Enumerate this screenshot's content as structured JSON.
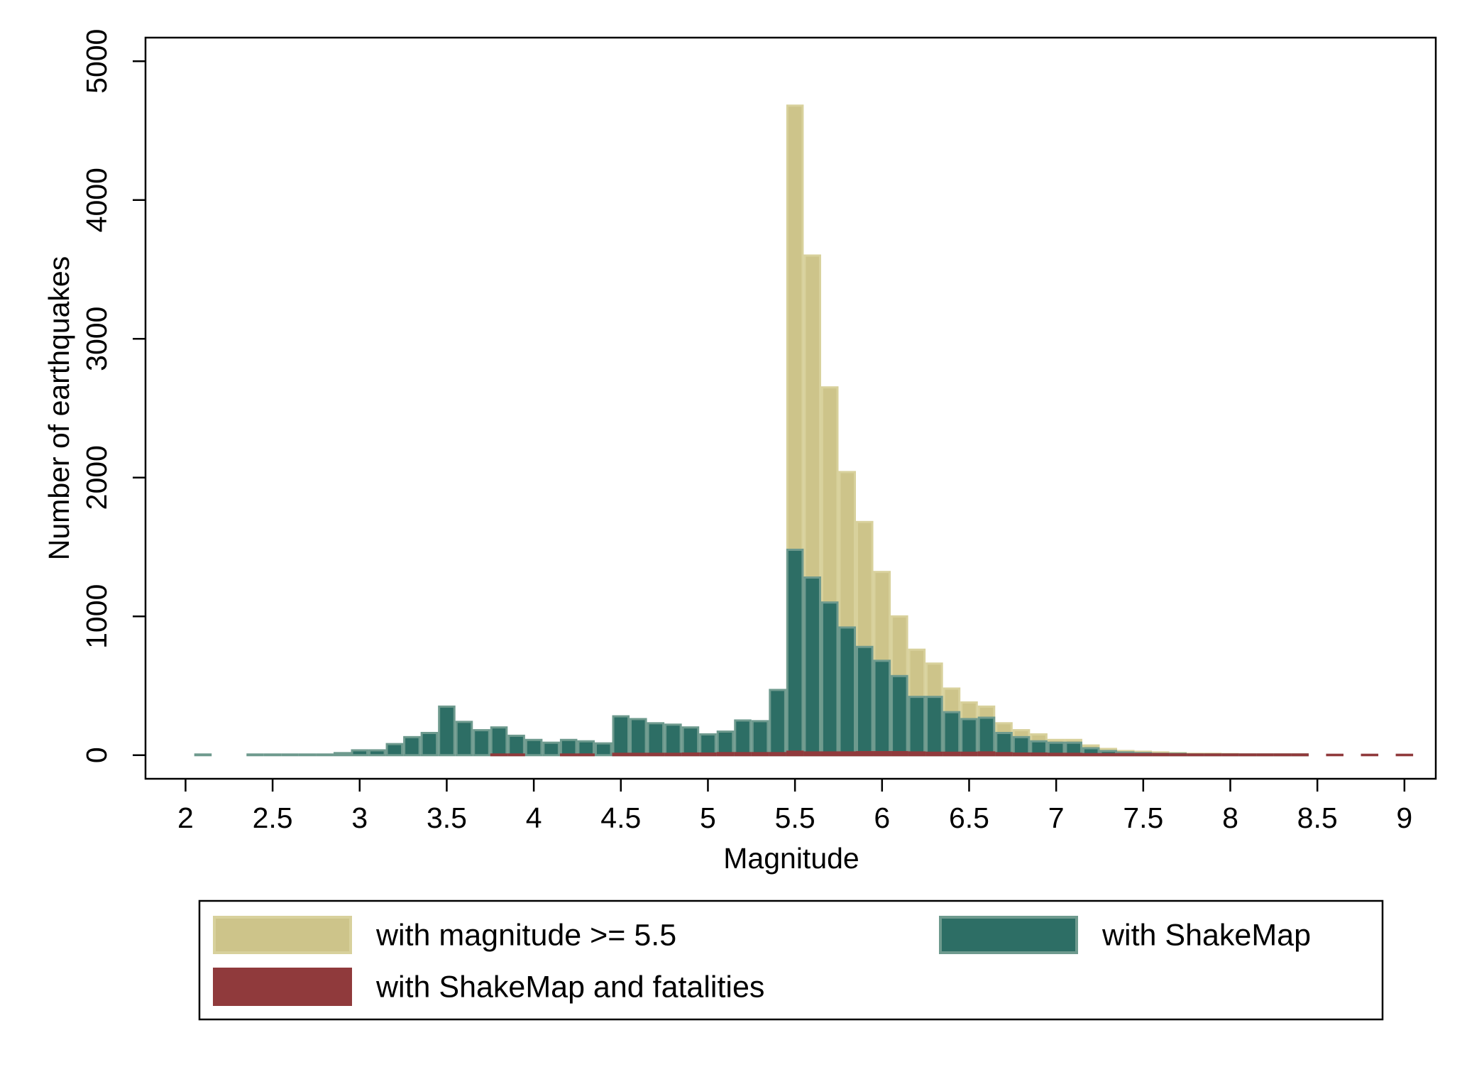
{
  "chart_data": {
    "type": "histogram",
    "xlabel": "Magnitude",
    "ylabel": "Number of earthquakes",
    "bins": [
      2.05,
      2.15,
      2.25,
      2.35,
      2.45,
      2.55,
      2.65,
      2.75,
      2.85,
      2.95,
      3.05,
      3.15,
      3.25,
      3.35,
      3.45,
      3.55,
      3.65,
      3.75,
      3.85,
      3.95,
      4.05,
      4.15,
      4.25,
      4.35,
      4.45,
      4.55,
      4.65,
      4.75,
      4.85,
      4.95,
      5.05,
      5.15,
      5.25,
      5.35,
      5.45,
      5.55,
      5.65,
      5.75,
      5.85,
      5.95,
      6.05,
      6.15,
      6.25,
      6.35,
      6.45,
      6.55,
      6.65,
      6.75,
      6.85,
      6.95,
      7.05,
      7.15,
      7.25,
      7.35,
      7.45,
      7.55,
      7.65,
      7.75,
      7.85,
      7.95,
      8.05,
      8.15,
      8.25,
      8.35,
      8.45,
      8.55,
      8.65,
      8.75,
      8.85,
      8.95,
      9.05
    ],
    "series": [
      {
        "name": "with magnitude >= 5.5",
        "color": "#cdc48a",
        "edge": "#d8d19c",
        "values": [
          0,
          0,
          0,
          0,
          0,
          0,
          0,
          0,
          0,
          0,
          0,
          0,
          0,
          0,
          0,
          0,
          0,
          0,
          0,
          0,
          0,
          0,
          0,
          0,
          0,
          0,
          0,
          0,
          0,
          0,
          0,
          0,
          0,
          0,
          4680,
          3600,
          2650,
          2040,
          1680,
          1320,
          1000,
          760,
          660,
          480,
          380,
          350,
          230,
          180,
          150,
          110,
          110,
          70,
          45,
          30,
          25,
          20,
          15,
          10,
          10,
          8,
          5,
          5,
          5,
          5,
          0,
          0,
          0,
          0,
          0,
          0
        ]
      },
      {
        "name": "with ShakeMap",
        "color": "#2d6e65",
        "edge": "#6e9a8e",
        "values": [
          5,
          0,
          0,
          5,
          5,
          5,
          5,
          5,
          15,
          35,
          35,
          80,
          130,
          160,
          350,
          240,
          180,
          200,
          140,
          110,
          90,
          110,
          100,
          85,
          280,
          260,
          230,
          220,
          200,
          150,
          170,
          250,
          245,
          470,
          1480,
          1280,
          1100,
          920,
          780,
          680,
          570,
          420,
          420,
          310,
          260,
          270,
          160,
          130,
          100,
          90,
          90,
          50,
          30,
          20,
          15,
          10,
          10,
          5,
          5,
          5,
          5,
          5,
          5,
          5,
          0,
          0,
          0,
          0,
          0,
          0
        ]
      },
      {
        "name": "with ShakeMap and fatalities",
        "color": "#903a3c",
        "edge": "#903a3c",
        "values": [
          0,
          0,
          0,
          0,
          0,
          0,
          0,
          0,
          0,
          0,
          0,
          0,
          0,
          0,
          0,
          0,
          0,
          5,
          5,
          0,
          0,
          5,
          5,
          0,
          10,
          10,
          10,
          10,
          12,
          12,
          15,
          15,
          15,
          15,
          25,
          20,
          20,
          20,
          22,
          22,
          22,
          20,
          18,
          18,
          18,
          20,
          15,
          12,
          12,
          10,
          10,
          8,
          8,
          8,
          8,
          8,
          6,
          5,
          5,
          5,
          5,
          5,
          5,
          5,
          0,
          3,
          0,
          3,
          0,
          3
        ]
      }
    ],
    "xlim": [
      1.77,
      9.18
    ],
    "ylim": [
      -170,
      5170
    ],
    "xticks": [
      2,
      2.5,
      3,
      3.5,
      4,
      4.5,
      5,
      5.5,
      6,
      6.5,
      7,
      7.5,
      8,
      8.5,
      9
    ],
    "yticks": [
      0,
      1000,
      2000,
      3000,
      4000,
      5000
    ],
    "legend": "bottom"
  }
}
